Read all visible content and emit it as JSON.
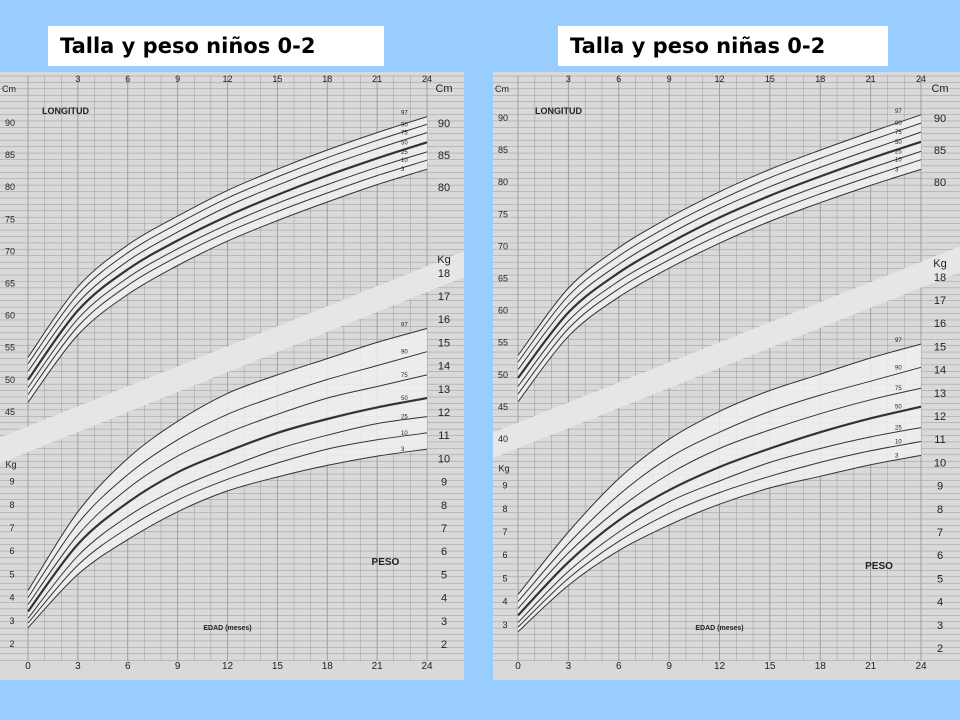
{
  "titles": {
    "left": "Talla y peso niños 0-2",
    "right": "Talla y peso niñas 0-2"
  },
  "colors": {
    "background": "#99ccff",
    "paper": "#d9d9d9",
    "band": "#f0f0f0",
    "grid": "#9a9a9a",
    "line": "#333333"
  },
  "chart_data": [
    {
      "type": "line",
      "id": "boys",
      "labels": {
        "longitud": "LONGITUD",
        "peso": "PESO",
        "edad": "EDAD (meses)",
        "cm": "Cm",
        "kg": "Kg"
      },
      "x": [
        0,
        3,
        6,
        9,
        12,
        15,
        18,
        21,
        24
      ],
      "xlim": [
        0,
        24
      ],
      "x_ticks": [
        0,
        3,
        6,
        9,
        12,
        15,
        18,
        21,
        24
      ],
      "x_ticks_top": [
        3,
        6,
        9,
        12,
        15,
        18,
        21,
        24
      ],
      "length": {
        "ylim": [
          40,
          95
        ],
        "unit": "Cm",
        "left_ticks": [
          45,
          50,
          55,
          60,
          65,
          70,
          75,
          80,
          85,
          90
        ],
        "right_ticks": [
          80,
          85,
          90
        ],
        "percentiles": [
          {
            "name": "97",
            "values": [
              53.5,
              64.5,
              71.0,
              75.5,
              79.5,
              82.8,
              85.8,
              88.5,
              91.0
            ]
          },
          {
            "name": "90",
            "values": [
              52.5,
              63.3,
              69.8,
              74.3,
              78.3,
              81.6,
              84.6,
              87.3,
              89.8
            ]
          },
          {
            "name": "75",
            "values": [
              51.3,
              62.0,
              68.5,
              73.0,
              77.0,
              80.3,
              83.3,
              86.0,
              88.5
            ]
          },
          {
            "name": "50",
            "values": [
              50.0,
              60.8,
              67.2,
              71.7,
              75.5,
              78.8,
              81.8,
              84.5,
              87.0
            ]
          },
          {
            "name": "25",
            "values": [
              48.8,
              59.5,
              65.9,
              70.4,
              74.2,
              77.5,
              80.4,
              83.1,
              85.5
            ]
          },
          {
            "name": "10",
            "values": [
              47.7,
              58.3,
              64.7,
              69.2,
              73.0,
              76.2,
              79.1,
              81.8,
              84.2
            ]
          },
          {
            "name": "3",
            "values": [
              46.5,
              57.0,
              63.3,
              67.8,
              71.6,
              74.8,
              77.7,
              80.4,
              82.8
            ]
          }
        ]
      },
      "weight": {
        "ylim": [
          2,
          18.5
        ],
        "unit": "Kg",
        "left_ticks": [
          2,
          3,
          4,
          5,
          6,
          7,
          8,
          9
        ],
        "right_ticks": [
          2,
          3,
          4,
          5,
          6,
          7,
          8,
          9,
          10,
          11,
          12,
          13,
          14,
          15,
          16,
          17,
          18
        ],
        "percentiles": [
          {
            "name": "97",
            "values": [
              4.3,
              7.7,
              10.0,
              11.6,
              12.8,
              13.6,
              14.3,
              15.0,
              15.6
            ]
          },
          {
            "name": "90",
            "values": [
              4.0,
              7.2,
              9.3,
              10.8,
              11.9,
              12.7,
              13.4,
              14.0,
              14.6
            ]
          },
          {
            "name": "75",
            "values": [
              3.7,
              6.7,
              8.7,
              10.1,
              11.1,
              11.9,
              12.6,
              13.1,
              13.6
            ]
          },
          {
            "name": "50",
            "values": [
              3.4,
              6.3,
              8.1,
              9.4,
              10.3,
              11.1,
              11.7,
              12.2,
              12.6
            ]
          },
          {
            "name": "25",
            "values": [
              3.1,
              5.8,
              7.5,
              8.7,
              9.6,
              10.4,
              11.0,
              11.5,
              11.8
            ]
          },
          {
            "name": "10",
            "values": [
              2.9,
              5.4,
              7.0,
              8.2,
              9.1,
              9.8,
              10.4,
              10.8,
              11.1
            ]
          },
          {
            "name": "3",
            "values": [
              2.7,
              5.0,
              6.5,
              7.7,
              8.6,
              9.2,
              9.7,
              10.1,
              10.4
            ]
          }
        ]
      }
    },
    {
      "type": "line",
      "id": "girls",
      "labels": {
        "longitud": "LONGITUD",
        "peso": "PESO",
        "edad": "EDAD (meses)",
        "cm": "Cm",
        "kg": "Kg"
      },
      "x": [
        0,
        3,
        6,
        9,
        12,
        15,
        18,
        21,
        24
      ],
      "xlim": [
        0,
        24
      ],
      "x_ticks": [
        0,
        3,
        6,
        9,
        12,
        15,
        18,
        21,
        24
      ],
      "x_ticks_top": [
        3,
        6,
        9,
        12,
        15,
        18,
        21,
        24
      ],
      "length": {
        "ylim": [
          40,
          95
        ],
        "unit": "Cm",
        "left_ticks": [
          40,
          45,
          50,
          55,
          60,
          65,
          70,
          75,
          80,
          85,
          90
        ],
        "right_ticks": [
          80,
          85,
          90
        ],
        "percentiles": [
          {
            "name": "97",
            "values": [
              53.0,
              63.5,
              69.8,
              74.5,
              78.5,
              82.0,
              85.0,
              87.8,
              90.5
            ]
          },
          {
            "name": "90",
            "values": [
              52.0,
              62.3,
              68.5,
              73.2,
              77.2,
              80.7,
              83.7,
              86.5,
              89.2
            ]
          },
          {
            "name": "75",
            "values": [
              50.8,
              61.0,
              67.2,
              71.9,
              75.9,
              79.3,
              82.3,
              85.1,
              87.8
            ]
          },
          {
            "name": "50",
            "values": [
              49.5,
              59.7,
              65.9,
              70.5,
              74.5,
              77.9,
              80.9,
              83.7,
              86.3
            ]
          },
          {
            "name": "25",
            "values": [
              48.2,
              58.4,
              64.6,
              69.1,
              73.1,
              76.5,
              79.5,
              82.2,
              84.8
            ]
          },
          {
            "name": "10",
            "values": [
              47.0,
              57.2,
              63.4,
              67.9,
              71.8,
              75.2,
              78.2,
              80.9,
              83.5
            ]
          },
          {
            "name": "3",
            "values": [
              45.8,
              56.0,
              62.1,
              66.6,
              70.5,
              73.9,
              76.8,
              79.5,
              82.0
            ]
          }
        ]
      },
      "weight": {
        "ylim": [
          2,
          18.5
        ],
        "unit": "Kg",
        "left_ticks": [
          3,
          4,
          5,
          6,
          7,
          8,
          9
        ],
        "right_ticks": [
          2,
          3,
          4,
          5,
          6,
          7,
          8,
          9,
          10,
          11,
          12,
          13,
          14,
          15,
          16,
          17,
          18
        ],
        "percentiles": [
          {
            "name": "97",
            "values": [
              4.3,
              7.0,
              9.3,
              11.0,
              12.2,
              13.1,
              13.8,
              14.5,
              15.1
            ]
          },
          {
            "name": "90",
            "values": [
              4.0,
              6.5,
              8.6,
              10.2,
              11.3,
              12.2,
              12.9,
              13.5,
              14.1
            ]
          },
          {
            "name": "75",
            "values": [
              3.7,
              6.1,
              8.0,
              9.5,
              10.6,
              11.4,
              12.1,
              12.7,
              13.2
            ]
          },
          {
            "name": "50",
            "values": [
              3.4,
              5.7,
              7.5,
              8.8,
              9.8,
              10.6,
              11.3,
              11.9,
              12.4
            ]
          },
          {
            "name": "25",
            "values": [
              3.1,
              5.3,
              7.0,
              8.3,
              9.2,
              10.0,
              10.6,
              11.1,
              11.5
            ]
          },
          {
            "name": "10",
            "values": [
              2.9,
              5.0,
              6.6,
              7.8,
              8.7,
              9.4,
              10.0,
              10.5,
              10.9
            ]
          },
          {
            "name": "3",
            "values": [
              2.7,
              4.7,
              6.2,
              7.3,
              8.2,
              8.9,
              9.4,
              9.9,
              10.3
            ]
          }
        ]
      }
    }
  ]
}
